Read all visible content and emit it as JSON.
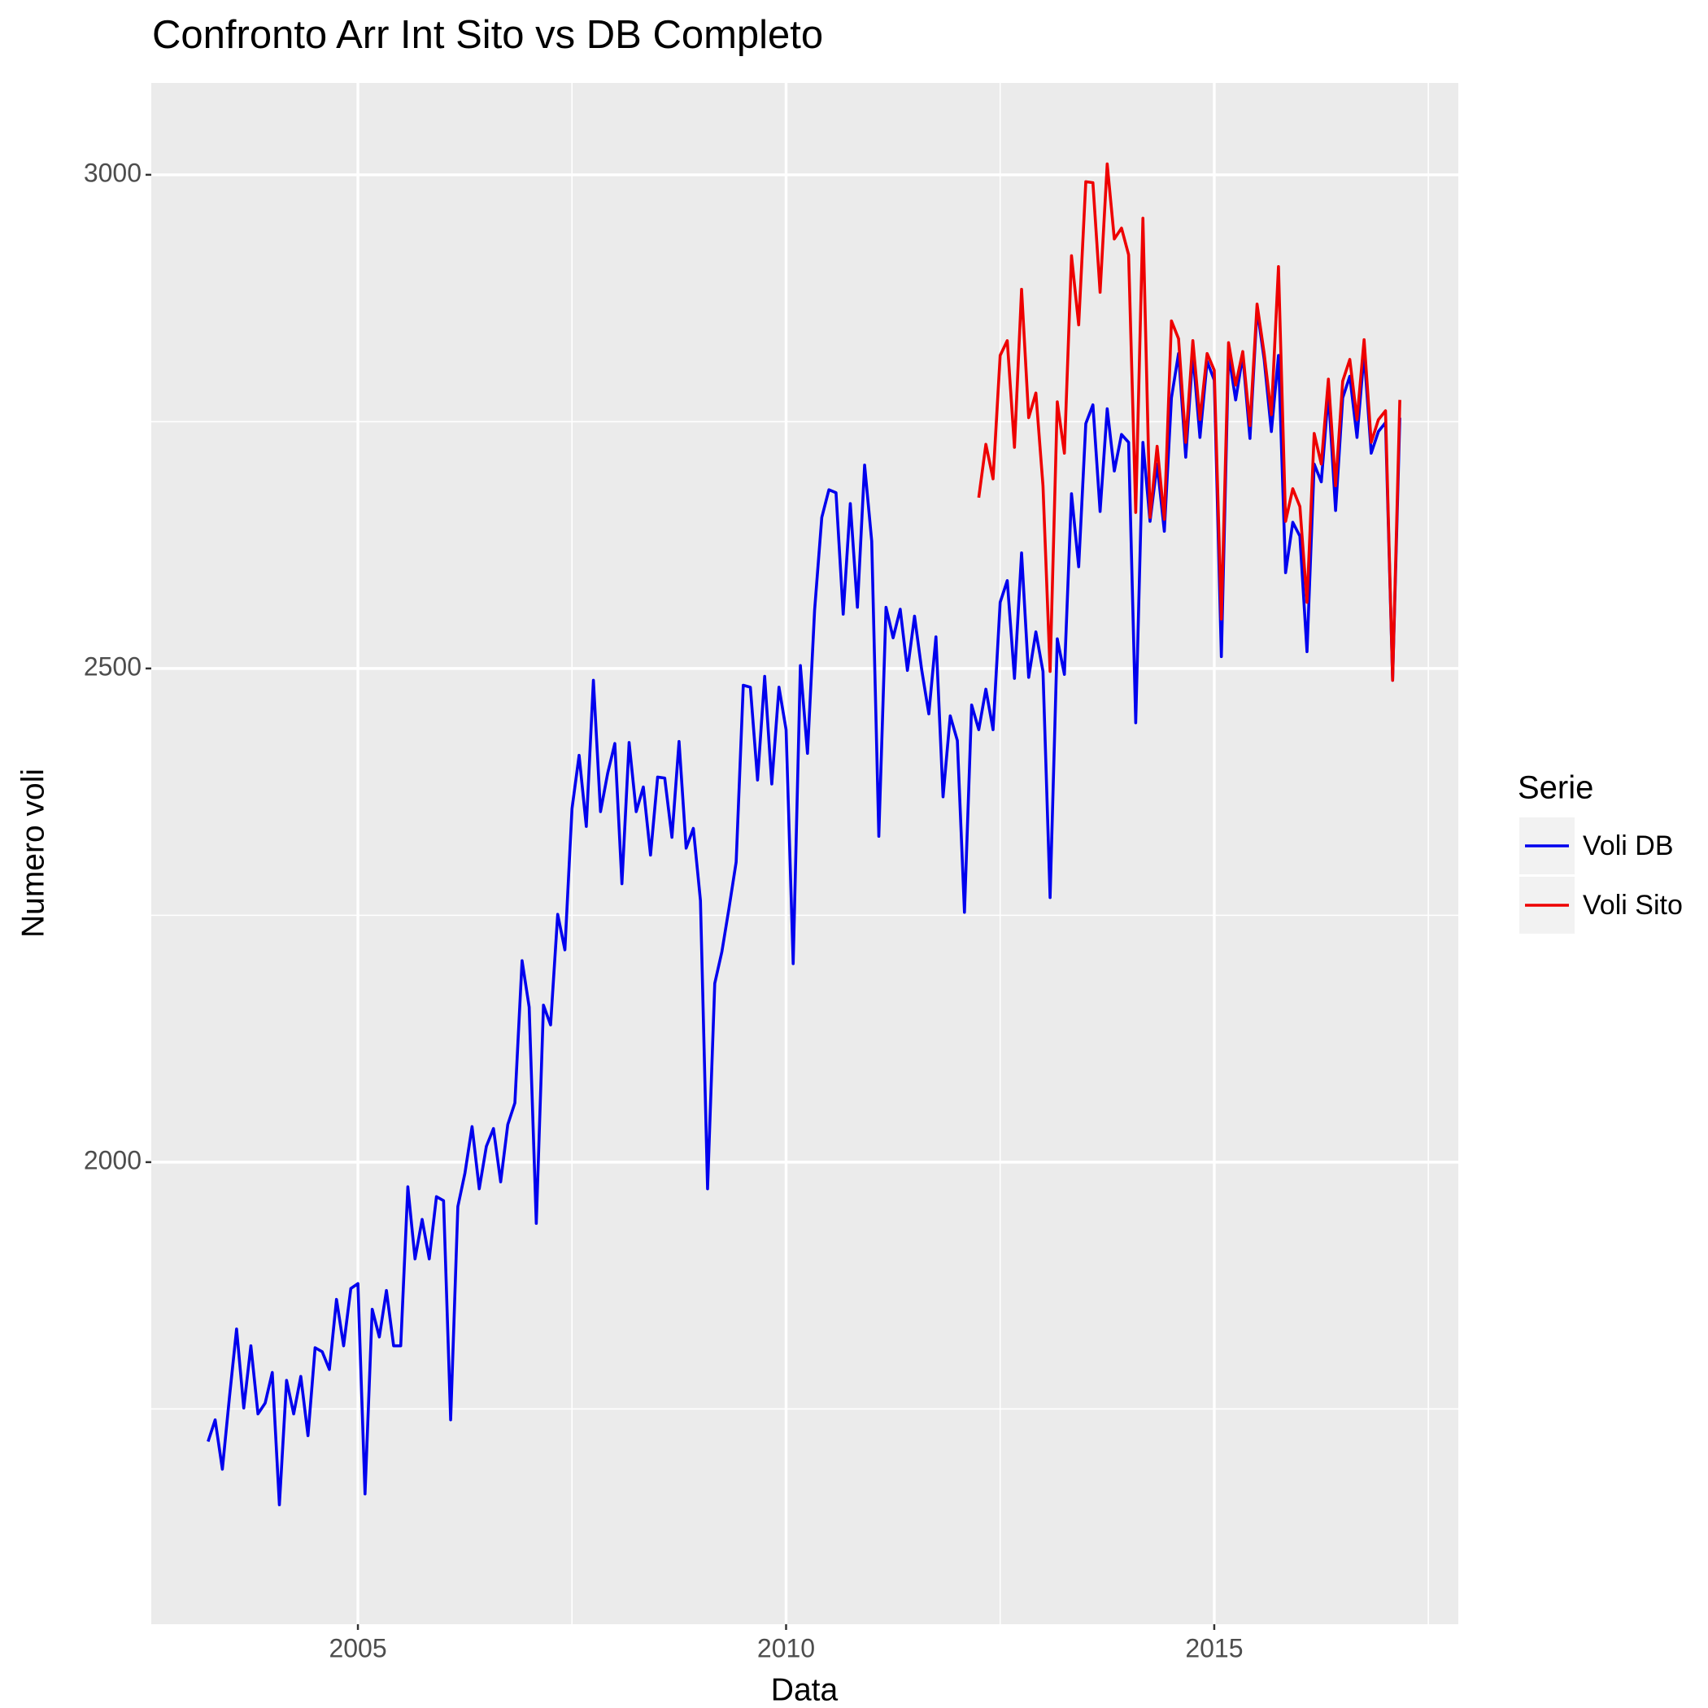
{
  "chart_data": {
    "type": "line",
    "title": "Confronto Arr Int Sito vs DB Completo",
    "x_label": "Data",
    "y_label": "Numero voli",
    "legend_title": "Serie",
    "legend_position": "right",
    "grid": true,
    "xlim": [
      2002.587,
      2017.85
    ],
    "ylim": [
      1532,
      3093
    ],
    "xticks": [
      2005,
      2010,
      2015
    ],
    "yticks": [
      2000,
      2500,
      3000
    ],
    "minor_xticks": [
      2007.5,
      2012.5,
      2017.5
    ],
    "minor_yticks": [
      1750,
      2250,
      2750
    ],
    "x": [
      2003.25,
      2003.333,
      2003.417,
      2003.5,
      2003.583,
      2003.667,
      2003.75,
      2003.833,
      2003.917,
      2004,
      2004.083,
      2004.167,
      2004.25,
      2004.333,
      2004.417,
      2004.5,
      2004.583,
      2004.667,
      2004.75,
      2004.833,
      2004.917,
      2005,
      2005.083,
      2005.167,
      2005.25,
      2005.333,
      2005.417,
      2005.5,
      2005.583,
      2005.667,
      2005.75,
      2005.833,
      2005.917,
      2006,
      2006.083,
      2006.167,
      2006.25,
      2006.333,
      2006.417,
      2006.5,
      2006.583,
      2006.667,
      2006.75,
      2006.833,
      2006.917,
      2007,
      2007.083,
      2007.167,
      2007.25,
      2007.333,
      2007.417,
      2007.5,
      2007.583,
      2007.667,
      2007.75,
      2007.833,
      2007.917,
      2008,
      2008.083,
      2008.167,
      2008.25,
      2008.333,
      2008.417,
      2008.5,
      2008.583,
      2008.667,
      2008.75,
      2008.833,
      2008.917,
      2009,
      2009.083,
      2009.167,
      2009.25,
      2009.333,
      2009.417,
      2009.5,
      2009.583,
      2009.667,
      2009.75,
      2009.833,
      2009.917,
      2010,
      2010.083,
      2010.167,
      2010.25,
      2010.333,
      2010.417,
      2010.5,
      2010.583,
      2010.667,
      2010.75,
      2010.833,
      2010.917,
      2011,
      2011.083,
      2011.167,
      2011.25,
      2011.333,
      2011.417,
      2011.5,
      2011.583,
      2011.667,
      2011.75,
      2011.833,
      2011.917,
      2012,
      2012.083,
      2012.167,
      2012.25,
      2012.333,
      2012.417,
      2012.5,
      2012.583,
      2012.667,
      2012.75,
      2012.833,
      2012.917,
      2013,
      2013.083,
      2013.167,
      2013.25,
      2013.333,
      2013.417,
      2013.5,
      2013.583,
      2013.667,
      2013.75,
      2013.833,
      2013.917,
      2014,
      2014.083,
      2014.167,
      2014.25,
      2014.333,
      2014.417,
      2014.5,
      2014.583,
      2014.667,
      2014.75,
      2014.833,
      2014.917,
      2015,
      2015.083,
      2015.167,
      2015.25,
      2015.333,
      2015.417,
      2015.5,
      2015.583,
      2015.667,
      2015.75,
      2015.833,
      2015.917,
      2016,
      2016.083,
      2016.167,
      2016.25,
      2016.333,
      2016.417,
      2016.5,
      2016.583,
      2016.667,
      2016.75,
      2016.833,
      2016.917,
      2017,
      2017.083,
      2017.167
    ],
    "series": [
      {
        "name": "Voli DB",
        "color": "#0000ee",
        "values": [
          1717,
          1739,
          1689,
          1762,
          1831,
          1751,
          1814,
          1745,
          1756,
          1787,
          1653,
          1779,
          1745,
          1783,
          1723,
          1812,
          1808,
          1790,
          1861,
          1814,
          1872,
          1877,
          1664,
          1851,
          1823,
          1870,
          1814,
          1814,
          1975,
          1902,
          1942,
          1902,
          1965,
          1961,
          1739,
          1955,
          1989,
          2036,
          1973,
          2016,
          2034,
          1980,
          2038,
          2060,
          2204,
          2157,
          1938,
          2159,
          2139,
          2251,
          2215,
          2358,
          2412,
          2340,
          2488,
          2355,
          2394,
          2424,
          2282,
          2425,
          2355,
          2380,
          2311,
          2390,
          2389,
          2329,
          2426,
          2318,
          2338,
          2265,
          1973,
          2181,
          2213,
          2257,
          2304,
          2483,
          2481,
          2387,
          2492,
          2383,
          2481,
          2438,
          2201,
          2503,
          2414,
          2559,
          2653,
          2681,
          2678,
          2555,
          2667,
          2562,
          2706,
          2629,
          2330,
          2562,
          2531,
          2560,
          2498,
          2553,
          2499,
          2454,
          2532,
          2370,
          2452,
          2427,
          2253,
          2463,
          2438,
          2479,
          2438,
          2567,
          2589,
          2490,
          2617,
          2491,
          2537,
          2497,
          2268,
          2530,
          2494,
          2677,
          2603,
          2748,
          2767,
          2659,
          2763,
          2700,
          2737,
          2729,
          2445,
          2729,
          2649,
          2707,
          2639,
          2774,
          2819,
          2714,
          2819,
          2734,
          2811,
          2792,
          2512,
          2819,
          2772,
          2817,
          2733,
          2864,
          2813,
          2740,
          2817,
          2597,
          2648,
          2634,
          2517,
          2707,
          2689,
          2779,
          2660,
          2774,
          2796,
          2734,
          2819,
          2718,
          2740,
          2749,
          2488,
          2754
        ]
      },
      {
        "name": "Voli Sito",
        "color": "#ee0000",
        "values": [
          null,
          null,
          null,
          null,
          null,
          null,
          null,
          null,
          null,
          null,
          null,
          null,
          null,
          null,
          null,
          null,
          null,
          null,
          null,
          null,
          null,
          null,
          null,
          null,
          null,
          null,
          null,
          null,
          null,
          null,
          null,
          null,
          null,
          null,
          null,
          null,
          null,
          null,
          null,
          null,
          null,
          null,
          null,
          null,
          null,
          null,
          null,
          null,
          null,
          null,
          null,
          null,
          null,
          null,
          null,
          null,
          null,
          null,
          null,
          null,
          null,
          null,
          null,
          null,
          null,
          null,
          null,
          null,
          null,
          null,
          null,
          null,
          null,
          null,
          null,
          null,
          null,
          null,
          null,
          null,
          null,
          null,
          null,
          null,
          null,
          null,
          null,
          null,
          null,
          null,
          null,
          null,
          null,
          null,
          null,
          null,
          null,
          null,
          null,
          null,
          null,
          null,
          null,
          null,
          null,
          null,
          null,
          null,
          2673,
          2727,
          2692,
          2817,
          2832,
          2724,
          2884,
          2754,
          2779,
          2685,
          2497,
          2770,
          2718,
          2918,
          2848,
          2993,
          2992,
          2881,
          3011,
          2935,
          2946,
          2919,
          2658,
          2956,
          2653,
          2725,
          2651,
          2852,
          2834,
          2729,
          2832,
          2752,
          2819,
          2802,
          2550,
          2830,
          2787,
          2821,
          2746,
          2869,
          2819,
          2757,
          2907,
          2649,
          2682,
          2664,
          2567,
          2738,
          2707,
          2793,
          2685,
          2791,
          2813,
          2752,
          2833,
          2729,
          2752,
          2761,
          2488,
          2772
        ]
      }
    ]
  }
}
